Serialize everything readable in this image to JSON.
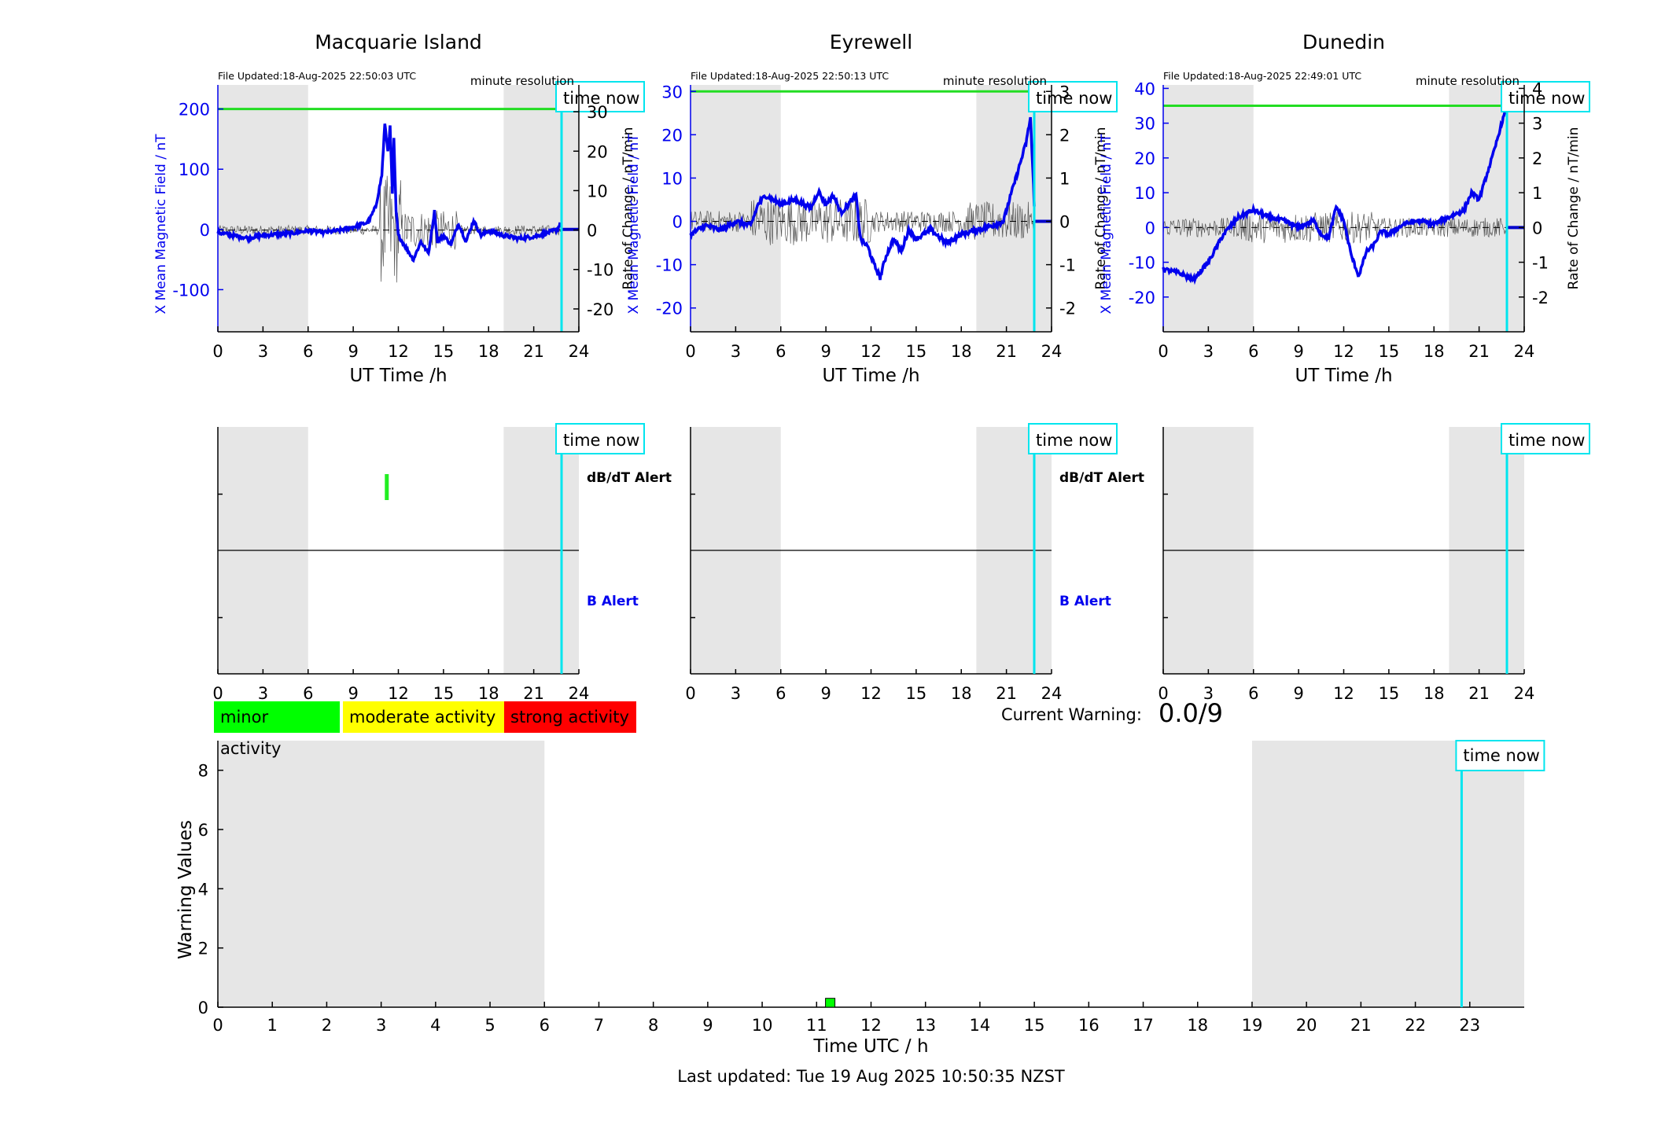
{
  "stations": [
    {
      "name": "Macquarie Island",
      "file_updated": "File Updated:18-Aug-2025 22:50:03 UTC",
      "resolution": "minute resolution",
      "left": {
        "label": "X Mean Magnetic Field / nT",
        "ticks": [
          -100,
          0,
          100,
          200
        ],
        "range": [
          -170,
          240
        ]
      },
      "right": {
        "label": "Rate of Change / nT/min",
        "ticks": [
          -20,
          -10,
          0,
          10,
          20,
          30
        ],
        "range": [
          -25.8,
          36.8
        ]
      },
      "threshold": 200,
      "trace": [
        [
          0,
          -5
        ],
        [
          1,
          -10
        ],
        [
          2,
          -14
        ],
        [
          3,
          -10
        ],
        [
          4,
          -8
        ],
        [
          5,
          -6
        ],
        [
          6,
          -2
        ],
        [
          7,
          -5
        ],
        [
          8,
          -2
        ],
        [
          9,
          4
        ],
        [
          10,
          12
        ],
        [
          10.5,
          38
        ],
        [
          10.9,
          90
        ],
        [
          11.1,
          175
        ],
        [
          11.3,
          130
        ],
        [
          11.45,
          170
        ],
        [
          11.6,
          60
        ],
        [
          11.7,
          150
        ],
        [
          11.85,
          30
        ],
        [
          12,
          -10
        ],
        [
          12.5,
          -30
        ],
        [
          13,
          -50
        ],
        [
          13.5,
          -20
        ],
        [
          14,
          -40
        ],
        [
          14.4,
          30
        ],
        [
          14.6,
          -20
        ],
        [
          15,
          -10
        ],
        [
          15.5,
          -25
        ],
        [
          16,
          10
        ],
        [
          16.5,
          -20
        ],
        [
          17,
          15
        ],
        [
          17.5,
          -10
        ],
        [
          18,
          -2
        ],
        [
          19,
          -10
        ],
        [
          20,
          -15
        ],
        [
          21,
          -12
        ],
        [
          22,
          -5
        ],
        [
          22.6,
          0
        ],
        [
          22.8,
          15
        ]
      ],
      "dbdt_alerts": [
        [
          11.1,
          11.35
        ]
      ]
    },
    {
      "name": "Eyrewell",
      "file_updated": "File Updated:18-Aug-2025 22:50:13 UTC",
      "resolution": "minute resolution",
      "left": {
        "label": "X Mean Magnetic Field / nT",
        "ticks": [
          -20,
          -10,
          0,
          10,
          20,
          30
        ],
        "range": [
          -25.5,
          31.5
        ]
      },
      "right": {
        "label": "Rate of Change / nT/min",
        "ticks": [
          -2,
          -1,
          0,
          1,
          2,
          3
        ],
        "range": [
          -2.55,
          3.15
        ]
      },
      "threshold": 30,
      "trace": [
        [
          0,
          -3
        ],
        [
          1,
          -1
        ],
        [
          2,
          -2
        ],
        [
          3,
          0
        ],
        [
          4,
          -1
        ],
        [
          4.5,
          4
        ],
        [
          5,
          6
        ],
        [
          6,
          4
        ],
        [
          7,
          5
        ],
        [
          8,
          3
        ],
        [
          8.5,
          7
        ],
        [
          9,
          4
        ],
        [
          9.5,
          6
        ],
        [
          10,
          2
        ],
        [
          10.5,
          4
        ],
        [
          11,
          6
        ],
        [
          11.3,
          -4
        ],
        [
          11.8,
          -6
        ],
        [
          12.2,
          -10
        ],
        [
          12.6,
          -13
        ],
        [
          13,
          -8
        ],
        [
          13.5,
          -4
        ],
        [
          14,
          -7
        ],
        [
          14.5,
          -2
        ],
        [
          15,
          -4
        ],
        [
          16,
          -2
        ],
        [
          17,
          -5
        ],
        [
          18,
          -3
        ],
        [
          19,
          -2
        ],
        [
          20,
          -1
        ],
        [
          20.8,
          0
        ],
        [
          21.2,
          5
        ],
        [
          21.8,
          12
        ],
        [
          22.3,
          18
        ],
        [
          22.6,
          24
        ],
        [
          22.9,
          0
        ]
      ],
      "dbdt_alerts": []
    },
    {
      "name": "Dunedin",
      "file_updated": "File Updated:18-Aug-2025 22:49:01 UTC",
      "resolution": "minute resolution",
      "left": {
        "label": "X Mean Magnetic Field / nT",
        "ticks": [
          -20,
          -10,
          0,
          10,
          20,
          30,
          40
        ],
        "range": [
          -30,
          41
        ]
      },
      "right": {
        "label": "Rate of Change / nT/min",
        "ticks": [
          -2,
          -1,
          0,
          1,
          2,
          3,
          4
        ],
        "range": [
          -3,
          4.1
        ]
      },
      "threshold": 35,
      "trace": [
        [
          0,
          -12
        ],
        [
          1,
          -13
        ],
        [
          2,
          -15
        ],
        [
          3,
          -10
        ],
        [
          4,
          -2
        ],
        [
          5,
          3
        ],
        [
          6,
          5
        ],
        [
          7,
          3
        ],
        [
          8,
          2
        ],
        [
          9,
          0
        ],
        [
          10,
          2
        ],
        [
          10.5,
          -2
        ],
        [
          11,
          -3
        ],
        [
          11.5,
          6
        ],
        [
          12,
          2
        ],
        [
          12.5,
          -8
        ],
        [
          13,
          -14
        ],
        [
          13.5,
          -7
        ],
        [
          14,
          -5
        ],
        [
          14.5,
          -1
        ],
        [
          15,
          -2
        ],
        [
          16,
          1
        ],
        [
          17,
          2
        ],
        [
          18,
          1
        ],
        [
          19,
          3
        ],
        [
          20,
          5
        ],
        [
          20.5,
          10
        ],
        [
          21,
          8
        ],
        [
          21.5,
          15
        ],
        [
          22,
          22
        ],
        [
          22.5,
          30
        ],
        [
          22.8,
          34
        ]
      ],
      "dbdt_alerts": []
    }
  ],
  "xaxis": {
    "label": "UT Time /h",
    "ticks": [
      0,
      3,
      6,
      9,
      12,
      15,
      18,
      21,
      24
    ]
  },
  "time_now": 22.85,
  "time_now_label": "time now",
  "night_bands": [
    [
      0,
      6
    ],
    [
      19,
      24
    ]
  ],
  "alert_labels": {
    "dbdt": "dB/dT Alert",
    "b": "B Alert"
  },
  "legend": {
    "minor": "minor activity",
    "moderate": "moderate activity",
    "strong": "strong activity"
  },
  "current_warning_label": "Current Warning:",
  "current_warning_value": "0.0/9",
  "chart_data": {
    "type": "bar",
    "ylabel": "Warning Values",
    "xlabel": "Time UTC / h",
    "ylim": [
      0,
      9
    ],
    "yticks": [
      0,
      2,
      4,
      6,
      8
    ],
    "xticks": [
      0,
      1,
      2,
      3,
      4,
      5,
      6,
      7,
      8,
      9,
      10,
      11,
      12,
      13,
      14,
      15,
      16,
      17,
      18,
      19,
      20,
      21,
      22,
      23
    ],
    "xlim": [
      0,
      24
    ],
    "night_bands": [
      [
        0,
        6
      ],
      [
        19,
        24
      ]
    ],
    "bars": [
      {
        "x": 11.25,
        "value": 0.3,
        "color": "#00ff00"
      }
    ]
  },
  "last_updated": "Last updated: Tue 19 Aug 2025 10:50:35 NZST"
}
